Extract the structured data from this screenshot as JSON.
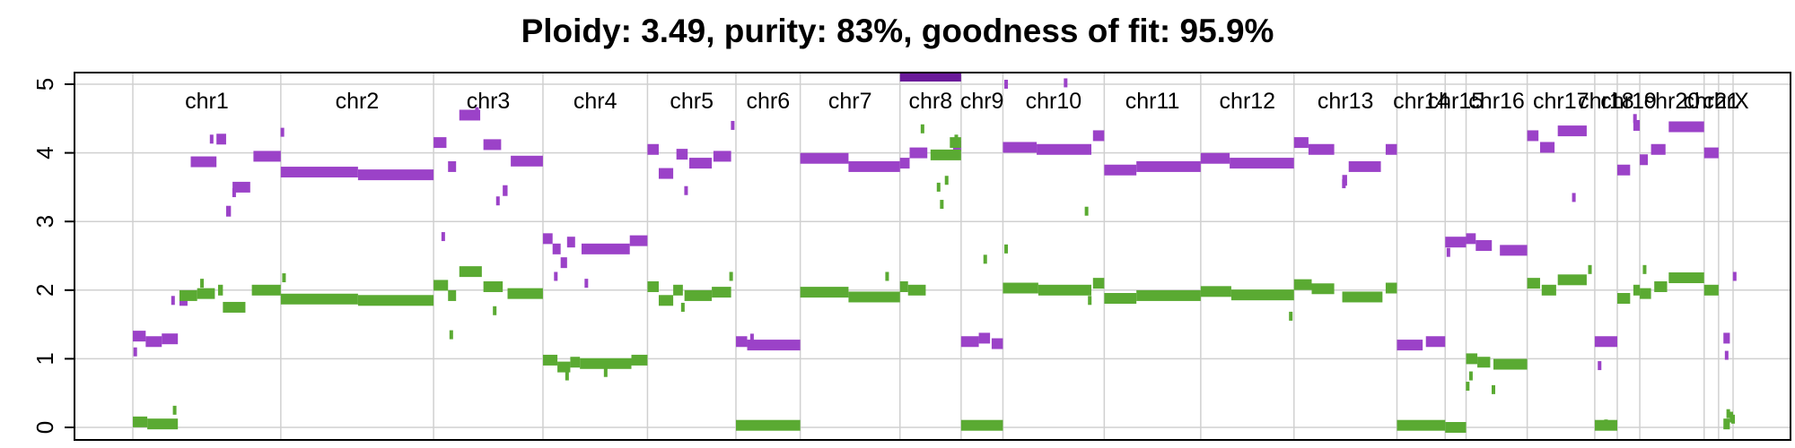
{
  "chart_data": {
    "type": "scatter",
    "title": "Ploidy: 3.49, purity: 83%, goodness of fit: 95.9%",
    "xlabel": "",
    "ylabel": "",
    "ylim": [
      0,
      5
    ],
    "y_ticks": [
      "0",
      "1",
      "2",
      "3",
      "4",
      "5"
    ],
    "grid": true,
    "colors": {
      "major": "#9B42C8",
      "minor": "#5AAA32",
      "grid": "#D0D0D0",
      "frame": "#000000"
    },
    "chromosomes": [
      {
        "name": "chr1",
        "start": 0.0,
        "end": 9.2
      },
      {
        "name": "chr2",
        "start": 9.2,
        "end": 18.7
      },
      {
        "name": "chr3",
        "start": 18.7,
        "end": 25.5
      },
      {
        "name": "chr4",
        "start": 25.5,
        "end": 32.0
      },
      {
        "name": "chr5",
        "start": 32.0,
        "end": 37.5
      },
      {
        "name": "chr6",
        "start": 37.5,
        "end": 41.5
      },
      {
        "name": "chr7",
        "start": 41.5,
        "end": 47.7
      },
      {
        "name": "chr8",
        "start": 47.7,
        "end": 51.5
      },
      {
        "name": "chr9",
        "start": 51.5,
        "end": 54.1
      },
      {
        "name": "chr10",
        "start": 54.1,
        "end": 60.4
      },
      {
        "name": "chr11",
        "start": 60.4,
        "end": 66.4
      },
      {
        "name": "chr12",
        "start": 66.4,
        "end": 72.2
      },
      {
        "name": "chr13",
        "start": 72.2,
        "end": 78.6
      },
      {
        "name": "chr14",
        "start": 78.6,
        "end": 81.6
      },
      {
        "name": "chr15",
        "start": 81.6,
        "end": 82.9
      },
      {
        "name": "chr16",
        "start": 82.9,
        "end": 86.7
      },
      {
        "name": "chr17",
        "start": 86.7,
        "end": 90.9
      },
      {
        "name": "chr18",
        "start": 90.9,
        "end": 92.3
      },
      {
        "name": "chr19",
        "start": 92.3,
        "end": 93.7
      },
      {
        "name": "chr20",
        "start": 93.7,
        "end": 97.7
      },
      {
        "name": "chr21",
        "start": 97.7,
        "end": 98.6
      },
      {
        "name": "chrX",
        "start": 98.6,
        "end": 99.5
      }
    ],
    "series": [
      {
        "name": "major",
        "color": "#9B42C8",
        "segments": [
          [
            0.0,
            0.8,
            1.33
          ],
          [
            0.8,
            1.8,
            1.25
          ],
          [
            1.8,
            2.8,
            1.29
          ],
          [
            2.9,
            3.4,
            1.85
          ],
          [
            3.6,
            5.2,
            3.87
          ],
          [
            5.2,
            5.8,
            4.2
          ],
          [
            5.8,
            6.1,
            3.15
          ],
          [
            6.2,
            7.3,
            3.5
          ],
          [
            7.5,
            9.2,
            3.95
          ],
          [
            9.2,
            14.0,
            3.72
          ],
          [
            14.0,
            18.7,
            3.68
          ],
          [
            18.7,
            19.5,
            4.15
          ],
          [
            19.6,
            20.1,
            3.8
          ],
          [
            20.3,
            21.6,
            4.55
          ],
          [
            21.8,
            22.9,
            4.12
          ],
          [
            23.0,
            23.3,
            3.45
          ],
          [
            23.5,
            25.5,
            3.88
          ],
          [
            25.5,
            26.1,
            2.75
          ],
          [
            26.1,
            26.6,
            2.6
          ],
          [
            26.6,
            27.0,
            2.4
          ],
          [
            27.0,
            27.5,
            2.7
          ],
          [
            27.9,
            30.9,
            2.6
          ],
          [
            30.9,
            32.0,
            2.72
          ],
          [
            32.0,
            32.7,
            4.05
          ],
          [
            32.7,
            33.6,
            3.7
          ],
          [
            33.8,
            34.5,
            3.98
          ],
          [
            34.6,
            36.0,
            3.85
          ],
          [
            36.1,
            37.2,
            3.95
          ],
          [
            37.5,
            38.2,
            1.25
          ],
          [
            38.2,
            41.5,
            1.2
          ],
          [
            41.5,
            44.5,
            3.92
          ],
          [
            44.5,
            47.7,
            3.8
          ],
          [
            47.7,
            48.3,
            3.85
          ],
          [
            48.3,
            49.4,
            4.0
          ],
          [
            51.0,
            51.5,
            4.1
          ],
          [
            51.5,
            52.6,
            1.25
          ],
          [
            52.6,
            53.3,
            1.3
          ],
          [
            53.4,
            54.1,
            1.22
          ],
          [
            54.1,
            56.2,
            4.08
          ],
          [
            56.2,
            59.6,
            4.05
          ],
          [
            59.7,
            60.4,
            4.25
          ],
          [
            60.4,
            62.4,
            3.75
          ],
          [
            62.4,
            66.4,
            3.8
          ],
          [
            66.4,
            68.2,
            3.92
          ],
          [
            68.2,
            72.2,
            3.85
          ],
          [
            72.2,
            73.1,
            4.15
          ],
          [
            73.1,
            74.7,
            4.05
          ],
          [
            75.2,
            75.5,
            3.6
          ],
          [
            75.6,
            77.6,
            3.8
          ],
          [
            77.9,
            78.6,
            4.05
          ],
          [
            78.6,
            80.2,
            1.2
          ],
          [
            80.4,
            81.6,
            1.25
          ],
          [
            81.6,
            82.9,
            2.7
          ],
          [
            82.9,
            83.5,
            2.75
          ],
          [
            83.5,
            84.5,
            2.65
          ],
          [
            85.0,
            86.7,
            2.58
          ],
          [
            86.7,
            87.4,
            4.25
          ],
          [
            87.5,
            88.4,
            4.08
          ],
          [
            88.6,
            90.4,
            4.32
          ],
          [
            90.9,
            92.3,
            1.25
          ],
          [
            92.3,
            93.1,
            3.75
          ],
          [
            93.3,
            93.7,
            4.4
          ],
          [
            93.7,
            94.2,
            3.9
          ],
          [
            94.4,
            95.3,
            4.05
          ],
          [
            95.5,
            97.7,
            4.38
          ],
          [
            97.7,
            98.6,
            4.0
          ],
          [
            98.9,
            99.3,
            1.3
          ]
        ]
      },
      {
        "name": "minor",
        "color": "#5AAA32",
        "segments": [
          [
            0.0,
            0.9,
            0.08
          ],
          [
            0.9,
            2.8,
            0.05
          ],
          [
            2.9,
            4.0,
            1.92
          ],
          [
            4.0,
            5.1,
            1.95
          ],
          [
            5.3,
            5.6,
            2.0
          ],
          [
            5.6,
            7.0,
            1.75
          ],
          [
            7.4,
            9.2,
            2.0
          ],
          [
            9.2,
            14.0,
            1.87
          ],
          [
            14.0,
            18.7,
            1.85
          ],
          [
            18.7,
            19.6,
            2.07
          ],
          [
            19.6,
            20.1,
            1.92
          ],
          [
            20.3,
            21.7,
            2.27
          ],
          [
            21.8,
            23.0,
            2.05
          ],
          [
            23.3,
            25.5,
            1.95
          ],
          [
            25.5,
            26.4,
            0.98
          ],
          [
            26.4,
            27.2,
            0.88
          ],
          [
            27.2,
            27.8,
            0.95
          ],
          [
            27.8,
            31.0,
            0.93
          ],
          [
            31.0,
            32.0,
            0.98
          ],
          [
            32.0,
            32.7,
            2.05
          ],
          [
            32.7,
            33.6,
            1.85
          ],
          [
            33.6,
            34.2,
            2.0
          ],
          [
            34.3,
            36.0,
            1.92
          ],
          [
            36.0,
            37.2,
            1.97
          ],
          [
            37.5,
            41.5,
            0.03
          ],
          [
            41.5,
            44.5,
            1.97
          ],
          [
            44.5,
            47.7,
            1.9
          ],
          [
            47.7,
            48.2,
            2.05
          ],
          [
            48.2,
            49.3,
            2.0
          ],
          [
            49.6,
            51.5,
            3.97
          ],
          [
            50.8,
            51.5,
            4.15
          ],
          [
            51.5,
            54.1,
            0.03
          ],
          [
            54.1,
            56.3,
            2.03
          ],
          [
            56.3,
            59.6,
            2.0
          ],
          [
            59.7,
            60.4,
            2.1
          ],
          [
            60.4,
            62.4,
            1.88
          ],
          [
            62.4,
            66.4,
            1.92
          ],
          [
            66.4,
            68.3,
            1.98
          ],
          [
            68.3,
            72.2,
            1.93
          ],
          [
            72.2,
            73.3,
            2.08
          ],
          [
            73.3,
            74.7,
            2.02
          ],
          [
            75.2,
            77.7,
            1.9
          ],
          [
            77.9,
            78.6,
            2.03
          ],
          [
            78.6,
            81.6,
            0.03
          ],
          [
            81.6,
            82.9,
            0.0
          ],
          [
            82.9,
            83.6,
            1.0
          ],
          [
            83.6,
            84.4,
            0.95
          ],
          [
            84.6,
            86.7,
            0.92
          ],
          [
            86.7,
            87.5,
            2.1
          ],
          [
            87.6,
            88.5,
            2.0
          ],
          [
            88.6,
            90.4,
            2.15
          ],
          [
            90.9,
            92.3,
            0.03
          ],
          [
            92.3,
            93.1,
            1.88
          ],
          [
            93.3,
            93.7,
            2.0
          ],
          [
            93.7,
            94.4,
            1.95
          ],
          [
            94.6,
            95.4,
            2.05
          ],
          [
            95.5,
            97.7,
            2.18
          ],
          [
            97.7,
            98.6,
            2.0
          ],
          [
            98.9,
            99.3,
            0.05
          ],
          [
            99.3,
            99.5,
            0.15
          ]
        ]
      }
    ],
    "scatter_points": [
      [
        0.15,
        1.1,
        "major"
      ],
      [
        2.5,
        1.85,
        "major"
      ],
      [
        4.9,
        4.2,
        "major"
      ],
      [
        6.3,
        3.42,
        "major"
      ],
      [
        9.3,
        4.3,
        "major"
      ],
      [
        21.4,
        4.6,
        "major"
      ],
      [
        19.3,
        2.78,
        "major"
      ],
      [
        22.7,
        3.3,
        "major"
      ],
      [
        26.3,
        2.2,
        "major"
      ],
      [
        28.2,
        2.1,
        "major"
      ],
      [
        34.4,
        3.45,
        "major"
      ],
      [
        37.3,
        4.4,
        "major"
      ],
      [
        38.5,
        1.3,
        "major"
      ],
      [
        75.3,
        3.55,
        "major"
      ],
      [
        81.8,
        2.55,
        "major"
      ],
      [
        89.6,
        3.35,
        "major"
      ],
      [
        91.2,
        0.9,
        "major"
      ],
      [
        93.4,
        4.5,
        "major"
      ],
      [
        99.1,
        1.05,
        "major"
      ],
      [
        99.6,
        2.2,
        "major"
      ],
      [
        54.3,
        5.0,
        "major"
      ],
      [
        58.0,
        5.02,
        "major"
      ],
      [
        2.6,
        0.25,
        "minor"
      ],
      [
        4.3,
        2.1,
        "minor"
      ],
      [
        9.4,
        2.18,
        "minor"
      ],
      [
        19.8,
        1.35,
        "minor"
      ],
      [
        22.5,
        1.7,
        "minor"
      ],
      [
        27.0,
        0.75,
        "minor"
      ],
      [
        29.4,
        0.8,
        "minor"
      ],
      [
        34.2,
        1.75,
        "minor"
      ],
      [
        37.2,
        2.2,
        "minor"
      ],
      [
        49.1,
        4.35,
        "minor"
      ],
      [
        50.1,
        3.5,
        "minor"
      ],
      [
        50.3,
        3.25,
        "minor"
      ],
      [
        50.6,
        3.6,
        "minor"
      ],
      [
        51.2,
        4.2,
        "minor"
      ],
      [
        46.9,
        2.2,
        "minor"
      ],
      [
        53.0,
        2.45,
        "minor"
      ],
      [
        54.3,
        2.6,
        "minor"
      ],
      [
        59.3,
        3.15,
        "minor"
      ],
      [
        59.5,
        1.85,
        "minor"
      ],
      [
        72.0,
        1.62,
        "minor"
      ],
      [
        83.0,
        0.6,
        "minor"
      ],
      [
        83.2,
        0.75,
        "minor"
      ],
      [
        84.6,
        0.55,
        "minor"
      ],
      [
        90.6,
        2.3,
        "minor"
      ],
      [
        91.6,
        0.05,
        "minor"
      ],
      [
        94.0,
        2.3,
        "minor"
      ],
      [
        99.2,
        0.2,
        "minor"
      ],
      [
        99.5,
        0.12,
        "minor"
      ]
    ],
    "overflow_band": {
      "start": 47.7,
      "end": 51.5,
      "value": 5.05,
      "color": "#6A1A9A"
    }
  }
}
